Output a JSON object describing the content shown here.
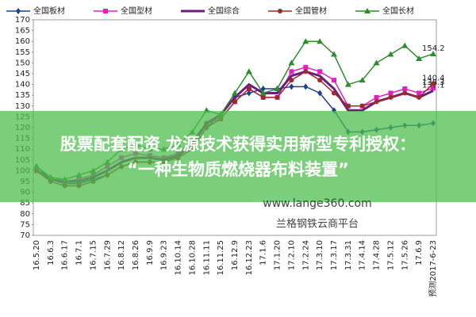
{
  "chart_data": {
    "type": "line",
    "categories": [
      "16.5.20",
      "16.6.3",
      "16.6.17",
      "16.7.1",
      "16.7.15",
      "16.7.29",
      "16.8.12",
      "16.8.26",
      "16.9.9",
      "16.9.23",
      "16.10.14",
      "16.10.28",
      "16.11.11",
      "16.11.25",
      "16.12.9",
      "16.12.23",
      "17.1.6",
      "17.1.20",
      "17.2.10",
      "17.2.24",
      "17.3.10",
      "17.3.17",
      "17.3.31",
      "17.4.14",
      "17.4.28",
      "17.5.12",
      "17.5.26",
      "17.6.9",
      "预测2017-6-23"
    ],
    "series": [
      {
        "name": "全国板材",
        "color": "#1f3f8f",
        "marker": "diamond",
        "values": [
          102,
          96,
          94,
          94,
          96,
          98,
          102,
          104,
          104,
          104,
          106,
          110,
          120,
          126,
          134,
          136,
          138,
          138,
          139,
          139,
          136,
          128,
          118,
          118,
          119,
          120,
          121,
          121,
          122
        ]
      },
      {
        "name": "全国型材",
        "color": "#e020c0",
        "marker": "square",
        "values": [
          100,
          96,
          95,
          96,
          98,
          102,
          106,
          108,
          107,
          106,
          108,
          114,
          122,
          124,
          132,
          138,
          134,
          134,
          146,
          148,
          146,
          142,
          130,
          130,
          134,
          136,
          138,
          136,
          138.3
        ]
      },
      {
        "name": "全国综合",
        "color": "#6a1f7a",
        "marker": "none",
        "values": [
          100,
          96,
          95,
          95,
          97,
          100,
          104,
          106,
          106,
          105,
          107,
          112,
          122,
          126,
          134,
          140,
          136,
          136,
          144,
          146,
          144,
          138,
          128,
          128,
          132,
          134,
          136,
          134,
          137.1
        ]
      },
      {
        "name": "全国管材",
        "color": "#a0282a",
        "marker": "circle",
        "values": [
          100,
          95,
          93,
          93,
          95,
          98,
          102,
          104,
          104,
          104,
          106,
          110,
          120,
          124,
          132,
          138,
          134,
          134,
          142,
          146,
          142,
          136,
          130,
          130,
          132,
          134,
          136,
          134,
          140.4
        ]
      },
      {
        "name": "全国长材",
        "color": "#2e8b2e",
        "marker": "triangle",
        "values": [
          102,
          97,
          96,
          98,
          100,
          104,
          110,
          112,
          110,
          110,
          112,
          118,
          128,
          126,
          136,
          146,
          136,
          138,
          150,
          160,
          160,
          154,
          140,
          142,
          150,
          154,
          158,
          152,
          154.2
        ]
      }
    ],
    "ylim": [
      70,
      170
    ],
    "yticks": [
      70,
      75,
      80,
      85,
      90,
      95,
      100,
      105,
      110,
      115,
      120,
      125,
      130,
      135,
      140,
      145,
      150,
      155,
      160,
      165,
      170
    ],
    "grid": false
  },
  "overlay": {
    "line1": "股票配套配资 龙源技术获得实用新型专利授权：",
    "line2": "“一种生物质燃烧器布料装置”",
    "url": "www.lange360.com",
    "brand": "兰格钢铁云商平台"
  }
}
